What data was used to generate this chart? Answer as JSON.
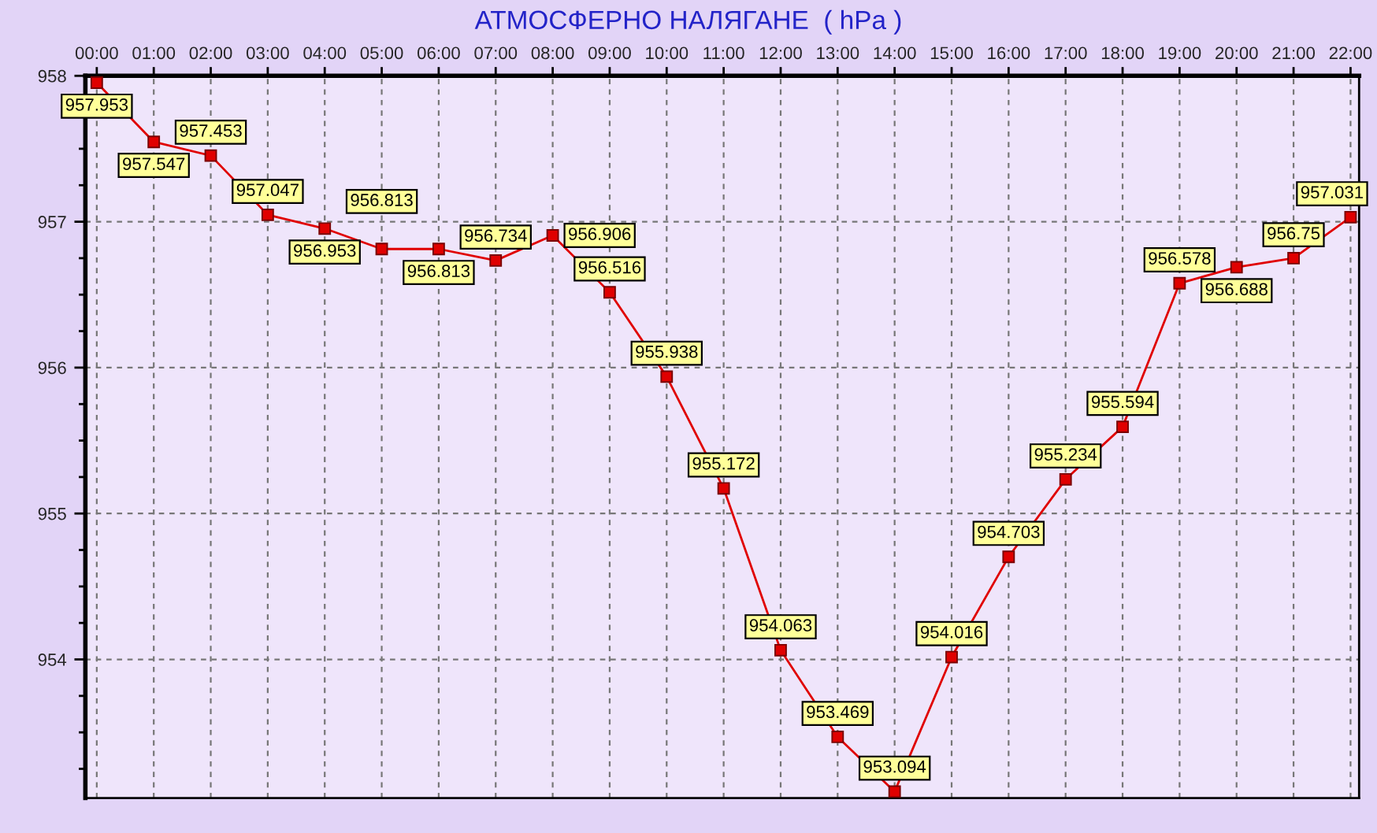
{
  "chart_data": {
    "type": "line",
    "title": "АТМОСФЕРНО НАЛЯГАНЕ  ( hPa )",
    "categories": [
      "00:00",
      "01:00",
      "02:00",
      "03:00",
      "04:00",
      "05:00",
      "06:00",
      "07:00",
      "08:00",
      "09:00",
      "10:00",
      "11:00",
      "12:00",
      "13:00",
      "14:00",
      "15:00",
      "16:00",
      "17:00",
      "18:00",
      "19:00",
      "20:00",
      "21:00",
      "22:00"
    ],
    "series": [
      {
        "color": "#e00000",
        "values": [
          957.953,
          957.547,
          957.453,
          957.047,
          956.953,
          956.813,
          956.813,
          956.734,
          956.906,
          956.516,
          955.938,
          955.172,
          954.063,
          953.469,
          953.094,
          954.016,
          954.703,
          955.234,
          955.594,
          956.578,
          956.688,
          956.75,
          957.031
        ]
      }
    ],
    "ylim": [
      953.05,
      958
    ],
    "yticks": [
      {
        "value": 953.25,
        "label": null
      },
      {
        "value": 953.5,
        "label": null
      },
      {
        "value": 953.75,
        "label": null
      },
      954,
      {
        "value": 954.25,
        "label": null
      },
      {
        "value": 954.5,
        "label": null
      },
      {
        "value": 954.75,
        "label": null
      },
      955,
      {
        "value": 955.25,
        "label": null
      },
      {
        "value": 955.5,
        "label": null
      },
      {
        "value": 955.75,
        "label": null
      },
      956,
      {
        "value": 956.25,
        "label": null
      },
      {
        "value": 956.5,
        "label": null
      },
      {
        "value": 956.75,
        "label": null
      },
      957,
      {
        "value": 957.25,
        "label": null
      },
      {
        "value": 957.5,
        "label": null
      },
      {
        "value": 957.75,
        "label": null
      },
      958
    ],
    "grid": true,
    "marker": "square",
    "line_style": "solid",
    "data_labels": true
  }
}
